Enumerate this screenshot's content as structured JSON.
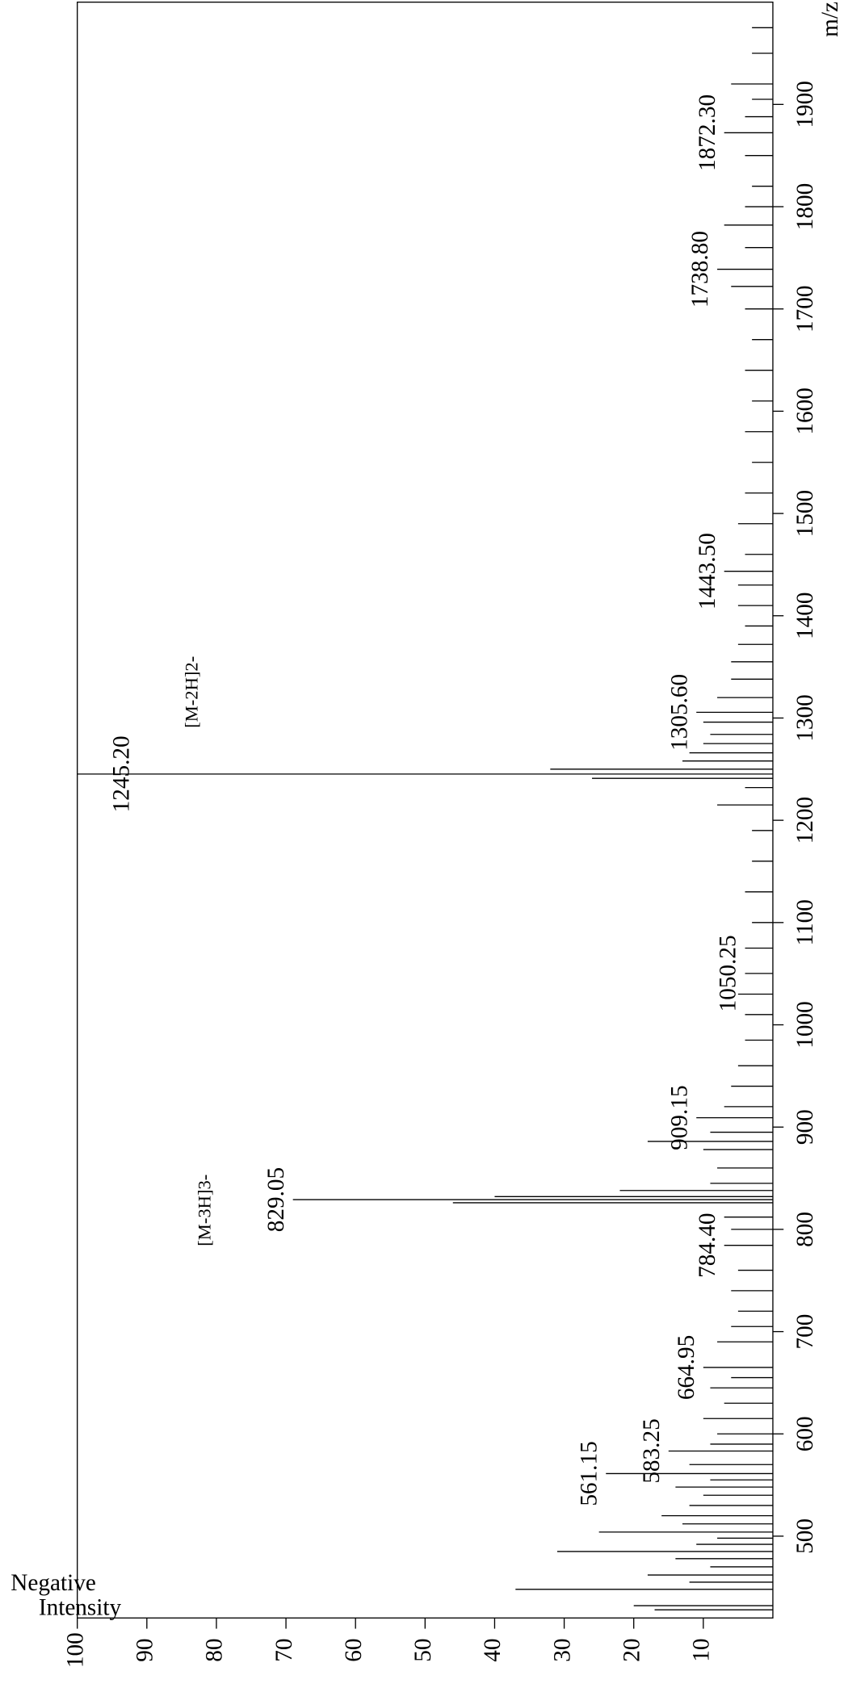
{
  "chart_data": {
    "type": "stem",
    "orientation": "rotated",
    "x_label": "m/z",
    "y_label": [
      "Negative",
      "Intensity"
    ],
    "color": "#000000",
    "xlim": [
      420,
      2000
    ],
    "ylim": [
      0,
      100
    ],
    "xticks": [
      500,
      600,
      700,
      800,
      900,
      1000,
      1100,
      1200,
      1300,
      1400,
      1500,
      1600,
      1700,
      1800,
      1900
    ],
    "yticks": [
      10,
      20,
      30,
      40,
      50,
      60,
      70,
      80,
      90,
      100
    ],
    "x": [
      428,
      432,
      448,
      455,
      462,
      470,
      478,
      485,
      492,
      498,
      504,
      512,
      520,
      530,
      540,
      548,
      555,
      561.15,
      570,
      583.25,
      590,
      600,
      615,
      630,
      645,
      655,
      664.95,
      690,
      705,
      720,
      740,
      760,
      784.4,
      800,
      812,
      826,
      829.05,
      832,
      838,
      845,
      860,
      878,
      886,
      895,
      909.15,
      920,
      940,
      960,
      985,
      1010,
      1030,
      1050.25,
      1075,
      1100,
      1130,
      1160,
      1190,
      1215,
      1232,
      1241,
      1245.2,
      1250,
      1258,
      1266,
      1275,
      1284,
      1296,
      1305.6,
      1320,
      1338,
      1355,
      1372,
      1390,
      1410,
      1430,
      1443.5,
      1460,
      1490,
      1520,
      1550,
      1580,
      1610,
      1640,
      1670,
      1700,
      1722,
      1738.8,
      1760,
      1782,
      1800,
      1820,
      1850,
      1872.3,
      1888,
      1905,
      1920,
      1950,
      1975
    ],
    "values": [
      17,
      20,
      37,
      12,
      18,
      9,
      14,
      31,
      11,
      8,
      25,
      13,
      16,
      12,
      10,
      14,
      9,
      24,
      12,
      15,
      9,
      8,
      10,
      7,
      9,
      6,
      10,
      8,
      6,
      5,
      6,
      5,
      7,
      6,
      7,
      46,
      69,
      40,
      22,
      9,
      8,
      10,
      18,
      9,
      11,
      7,
      6,
      5,
      4,
      4,
      5,
      4,
      4,
      3,
      4,
      3,
      3,
      8,
      4,
      26,
      100,
      32,
      13,
      12,
      10,
      9,
      10,
      11,
      8,
      6,
      6,
      5,
      4,
      5,
      5,
      7,
      4,
      5,
      4,
      3,
      4,
      3,
      4,
      3,
      4,
      6,
      8,
      4,
      7,
      4,
      3,
      4,
      7,
      4,
      3,
      6,
      3,
      3
    ],
    "peak_labels": [
      {
        "value": 561.15,
        "label": "561.15"
      },
      {
        "value": 583.25,
        "label": "583.25"
      },
      {
        "value": 664.95,
        "label": "664.95"
      },
      {
        "value": 784.4,
        "label": "784.40"
      },
      {
        "value": 829.05,
        "label": "829.05"
      },
      {
        "value": 909.15,
        "label": "909.15"
      },
      {
        "value": 1050.25,
        "label": "1050.25"
      },
      {
        "value": 1245.2,
        "label": "1245.20"
      },
      {
        "value": 1305.6,
        "label": "1305.60"
      },
      {
        "value": 1443.5,
        "label": "1443.50"
      },
      {
        "value": 1738.8,
        "label": "1738.80"
      },
      {
        "value": 1872.3,
        "label": "1872.30"
      }
    ],
    "annotations": [
      "[M-3H]3-",
      "[M-2H]2-"
    ]
  }
}
